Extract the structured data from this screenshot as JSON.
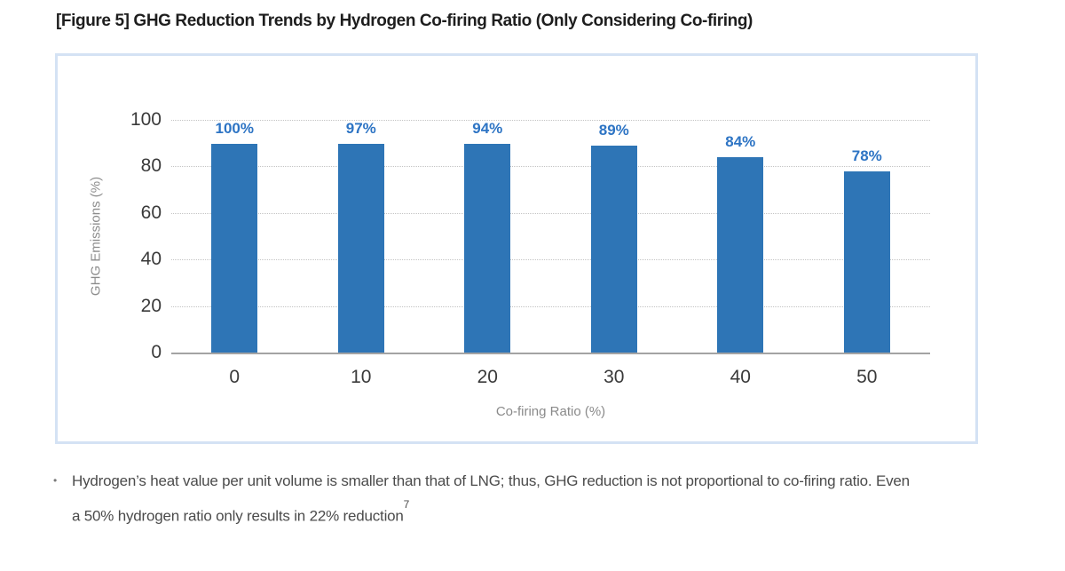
{
  "page": {
    "title": "[Figure 5] GHG Reduction Trends by Hydrogen Co-firing Ratio (Only Considering Co-firing)"
  },
  "chart_data": {
    "type": "bar",
    "categories": [
      "0",
      "10",
      "20",
      "30",
      "40",
      "50"
    ],
    "values": [
      100,
      97,
      94,
      89,
      84,
      78
    ],
    "data_labels": [
      "100%",
      "97%",
      "94%",
      "89%",
      "84%",
      "78%"
    ],
    "xlabel": "Co-firing Ratio (%)",
    "ylabel": "GHG Emissions (%)",
    "yticks": [
      0,
      20,
      40,
      60,
      80,
      100
    ],
    "ylim": [
      0,
      100
    ],
    "legend": "none",
    "grid": "horizontal-dotted",
    "bar_color": "#2e75b6",
    "data_label_color": "#2d74c4",
    "panel_border_color": "#d4e2f4",
    "axis_line_color": "#a3a3a3"
  },
  "footnote": {
    "bullet": "•",
    "line1": "Hydrogen’s heat value per unit volume is smaller than that of LNG; thus, GHG reduction is not proportional to co-firing ratio. Even",
    "line2": "a 50% hydrogen ratio only results in 22% reduction",
    "superscript": "7"
  }
}
